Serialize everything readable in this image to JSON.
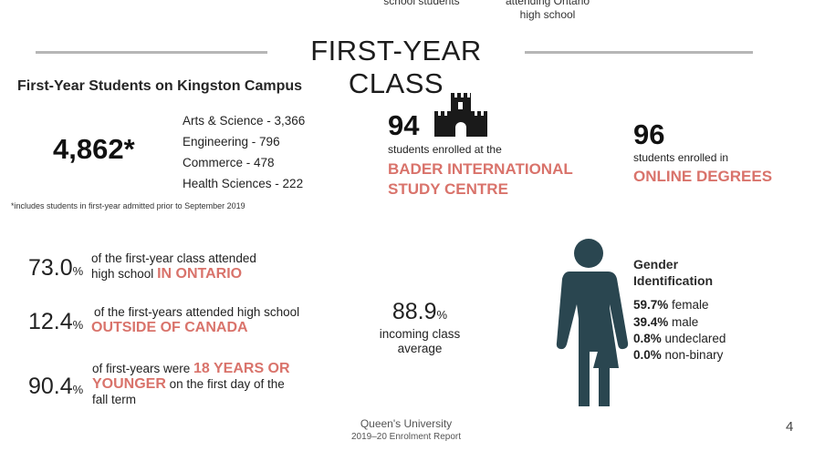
{
  "top_fragments": [
    "school students",
    "attending Ontario",
    "high school"
  ],
  "section_title": "FIRST-YEAR CLASS",
  "campus": {
    "heading": "First-Year Students on Kingston Campus",
    "total": "4,862*",
    "faculties": [
      "Arts & Science - 3,366",
      "Engineering - 796",
      "Commerce - 478",
      "Health Sciences - 222"
    ],
    "footnote": "*includes students in first-year admitted prior to September 2019"
  },
  "bader": {
    "number": "94",
    "desc": "students enrolled at the",
    "name_line1": "BADER INTERNATIONAL",
    "name_line2": "STUDY CENTRE",
    "icon": "castle-icon"
  },
  "online": {
    "number": "96",
    "desc": "students enrolled in",
    "name": "ONLINE DEGREES"
  },
  "stats": [
    {
      "value": "73.0",
      "unit": "%",
      "line1": "of the first-year class attended",
      "line2_pre": "high school ",
      "line2_accent": "IN ONTARIO"
    },
    {
      "value": "12.4",
      "unit": "%",
      "line1": "of the first-years attended high school",
      "line2_accent": "OUTSIDE OF CANADA"
    },
    {
      "value": "90.4",
      "unit": "%",
      "line1_pre": "of first-years were ",
      "line1_accent": "18 YEARS OR",
      "line2_accent": "YOUNGER",
      "line2_post": " on the first day of the",
      "line3": "fall term"
    }
  ],
  "average": {
    "value": "88.9",
    "unit": "%",
    "line1": "incoming class",
    "line2": "average"
  },
  "gender": {
    "heading_line1": "Gender",
    "heading_line2": "Identification",
    "icon": "gender-figure-icon",
    "rows": [
      {
        "value": "59.7%",
        "label": " female"
      },
      {
        "value": "39.4%",
        "label": " male"
      },
      {
        "value": "0.8%",
        "label": " undeclared"
      },
      {
        "value": "0.0%",
        "label": " non-binary"
      }
    ]
  },
  "footer": {
    "line1": "Queen's University",
    "line2": "2019–20 Enrolment Report",
    "page": "4"
  },
  "colors": {
    "accent": "#d9736b",
    "figure": "#2a4650",
    "rule": "#b6b6b6"
  }
}
